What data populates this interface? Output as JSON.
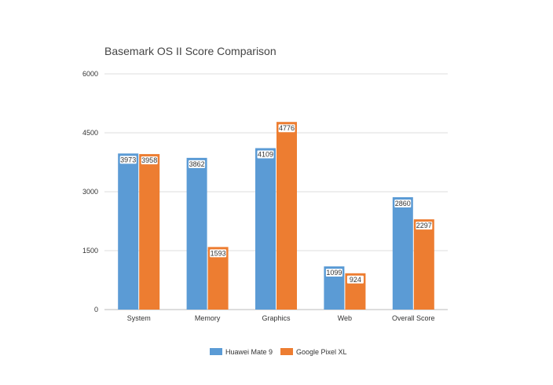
{
  "chart_data": {
    "type": "bar",
    "title": "Basemark OS II Score Comparison",
    "xlabel": "",
    "ylabel": "",
    "categories": [
      "System",
      "Memory",
      "Graphics",
      "Web",
      "Overall Score"
    ],
    "series": [
      {
        "name": "Huawei Mate 9",
        "values": [
          3973,
          3862,
          4109,
          1099,
          2860
        ]
      },
      {
        "name": "Google Pixel XL",
        "values": [
          3958,
          1593,
          4776,
          924,
          2297
        ]
      }
    ],
    "ylim": [
      0,
      6000
    ],
    "yticks": [
      "0",
      "1500",
      "3000",
      "4500",
      "6000"
    ],
    "grid": true,
    "legend_position": "bottom",
    "colors": [
      "#5b9bd5",
      "#ed7d31"
    ]
  }
}
